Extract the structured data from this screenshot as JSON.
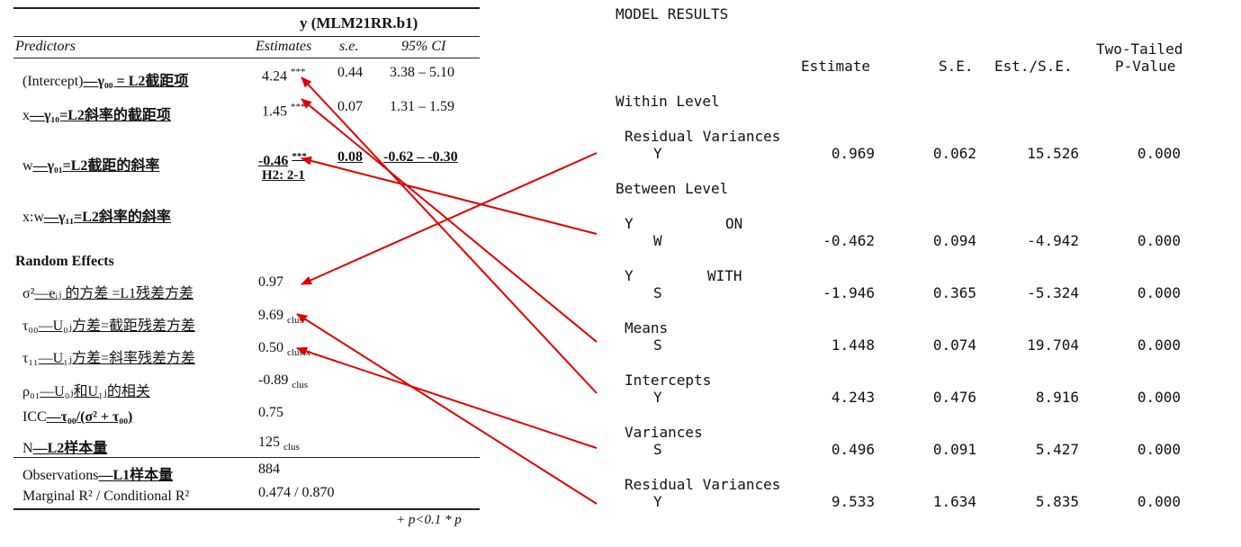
{
  "table": {
    "model_title": "y (MLM21RR.b1)",
    "headers": {
      "predictors": "Predictors",
      "estimates": "Estimates",
      "se": "s.e.",
      "ci": "95% CI"
    },
    "fixed": [
      {
        "label_pre": "(Intercept)",
        "label_rest": "—γ₀₀ = L2截距项",
        "estimate": "4.24",
        "stars": "***",
        "se": "0.44",
        "ci": "3.38 – 5.10"
      },
      {
        "label_pre": "x",
        "label_rest": "—γ₁₀=L2斜率的截距项",
        "estimate": "1.45",
        "stars": "***",
        "se": "0.07",
        "ci": "1.31 – 1.59"
      },
      {
        "label_pre": "w",
        "label_rest": "—γ₀₁=L2截距的斜率",
        "estimate": "-0.46",
        "stars": "***",
        "se": "0.08",
        "ci": "-0.62 – -0.30",
        "note": "H2: 2-1"
      },
      {
        "label_pre": "x:w",
        "label_rest": "—γ₁₁=L2斜率的斜率"
      }
    ],
    "random_title": "Random Effects",
    "random": [
      {
        "label_pre": "σ²",
        "label_rest": "—eᵢⱼ 的方差 =L1残差方差",
        "value": "0.97",
        "suffix": ""
      },
      {
        "label_pre": "τ₀₀",
        "label_rest": "—U₀ⱼ方差=截距残差方差",
        "value": "9.69",
        "suffix": "clus"
      },
      {
        "label_pre": "τ₁₁",
        "label_rest": "—U₁ⱼ方差=斜率残差方差",
        "value": "0.50",
        "suffix": "clus.x"
      },
      {
        "label_pre": "ρ₀₁",
        "label_rest": "—U₀ⱼ和U₁ⱼ的相关",
        "value": "-0.89",
        "suffix": "clus"
      },
      {
        "label_pre": "ICC",
        "label_rest": "—τ₀₀/(σ² + τ₀₀)",
        "value": "0.75",
        "suffix": ""
      },
      {
        "label_pre": "N",
        "label_rest": "—L2样本量",
        "value": "125",
        "suffix": "clus"
      }
    ],
    "observations": {
      "label_pre": "Observations",
      "label_rest": "—L1样本量",
      "value": "884"
    },
    "r2": {
      "label": "Marginal R² / Conditional R²",
      "value": "0.474 / 0.870"
    },
    "footnote": "+ p<0.1   * p"
  },
  "mplus": {
    "title": "MODEL RESULTS",
    "col_estimate": "Estimate",
    "col_se": "S.E.",
    "col_ratio": "Est./S.E.",
    "col_p1": "Two-Tailed",
    "col_p2": "P-Value",
    "within_level": "Within Level",
    "between_level": "Between Level",
    "blocks": [
      {
        "header": "Residual Variances",
        "header2": "",
        "var": "Y",
        "estimate": "0.969",
        "se": "0.062",
        "ratio": "15.526",
        "p": "0.000"
      },
      {
        "header": "Y",
        "header2": "ON",
        "var": "W",
        "estimate": "-0.462",
        "se": "0.094",
        "ratio": "-4.942",
        "p": "0.000"
      },
      {
        "header": "Y",
        "header2": "WITH",
        "var": "S",
        "estimate": "-1.946",
        "se": "0.365",
        "ratio": "-5.324",
        "p": "0.000"
      },
      {
        "header": "Means",
        "header2": "",
        "var": "S",
        "estimate": "1.448",
        "se": "0.074",
        "ratio": "19.704",
        "p": "0.000"
      },
      {
        "header": "Intercepts",
        "header2": "",
        "var": "Y",
        "estimate": "4.243",
        "se": "0.476",
        "ratio": "8.916",
        "p": "0.000"
      },
      {
        "header": "Variances",
        "header2": "",
        "var": "S",
        "estimate": "0.496",
        "se": "0.091",
        "ratio": "5.427",
        "p": "0.000"
      },
      {
        "header": "Residual Variances",
        "header2": "",
        "var": "Y",
        "estimate": "9.533",
        "se": "1.634",
        "ratio": "5.835",
        "p": "0.000"
      }
    ]
  },
  "colors": {
    "arrow": "#e00000",
    "text": "#111111"
  }
}
